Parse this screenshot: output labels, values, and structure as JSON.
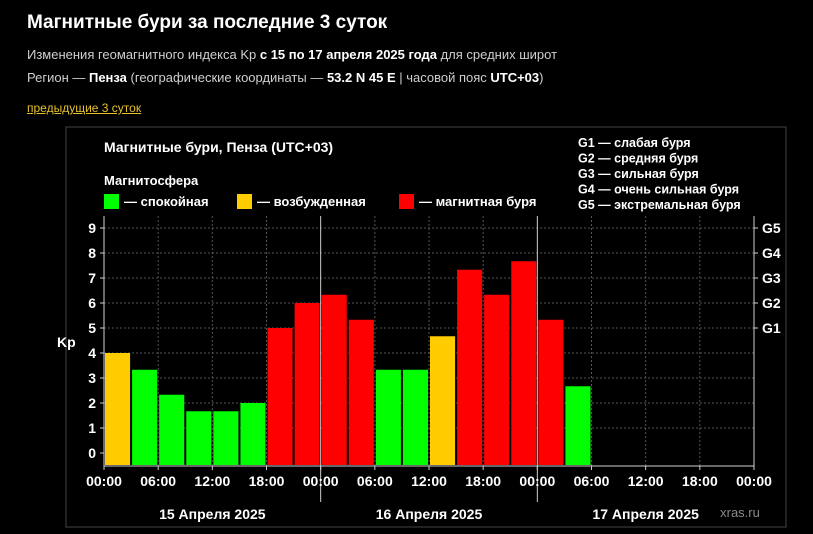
{
  "page": {
    "title": "Магнитные бури за последние 3 суток",
    "sub1": {
      "pre": "Изменения геомагнитного индекса Kp ",
      "bold": "с 15 по 17 апреля 2025 года",
      "post": " для средних широт"
    },
    "sub2": {
      "pre": "Регион — ",
      "city": "Пенза",
      "mid": " (географические координаты — ",
      "coords": "53.2 N 45 E",
      "mid2": " | часовой пояс ",
      "tz": "UTC+03",
      "post": ")"
    },
    "prev_link": "предыдущие 3 суток"
  },
  "chart_data": {
    "type": "bar",
    "title": "Магнитные бури, Пенза (UTC+03)",
    "legend_title": "Магнитосфера",
    "legend": [
      {
        "label": "— спокойная",
        "color": "#00ff00"
      },
      {
        "label": "— возбужденная",
        "color": "#ffcc00"
      },
      {
        "label": "— магнитная буря",
        "color": "#ff0000"
      }
    ],
    "g_legend": [
      "G1 — слабая буря",
      "G2 — средняя буря",
      "G3 — сильная буря",
      "G4 — очень сильная буря",
      "G5 — экстремальная буря"
    ],
    "ylabel": "Kp",
    "ylim": [
      0,
      9
    ],
    "yticks": [
      "0",
      "1",
      "2",
      "3",
      "4",
      "5",
      "6",
      "7",
      "8",
      "9"
    ],
    "g_ticks": [
      {
        "label": "G1",
        "value": 5
      },
      {
        "label": "G2",
        "value": 6
      },
      {
        "label": "G3",
        "value": 7
      },
      {
        "label": "G4",
        "value": 8
      },
      {
        "label": "G5",
        "value": 9
      }
    ],
    "xticks": [
      "00:00",
      "06:00",
      "12:00",
      "18:00",
      "00:00",
      "06:00",
      "12:00",
      "18:00",
      "00:00",
      "06:00",
      "12:00",
      "18:00",
      "00:00"
    ],
    "days": [
      "15 Апреля 2025",
      "16 Апреля 2025",
      "17 Апреля 2025"
    ],
    "slots": 24,
    "values": [
      4.0,
      3.33,
      2.33,
      1.67,
      1.67,
      2.0,
      5.0,
      6.0,
      6.33,
      5.33,
      3.33,
      3.33,
      4.67,
      7.33,
      6.33,
      7.67,
      5.33,
      2.67
    ],
    "colors": [
      "#ffcc00",
      "#00ff00",
      "#00ff00",
      "#00ff00",
      "#00ff00",
      "#00ff00",
      "#ff0000",
      "#ff0000",
      "#ff0000",
      "#ff0000",
      "#00ff00",
      "#00ff00",
      "#ffcc00",
      "#ff0000",
      "#ff0000",
      "#ff0000",
      "#ff0000",
      "#00ff00"
    ],
    "watermark": "xras.ru",
    "grid": true
  }
}
